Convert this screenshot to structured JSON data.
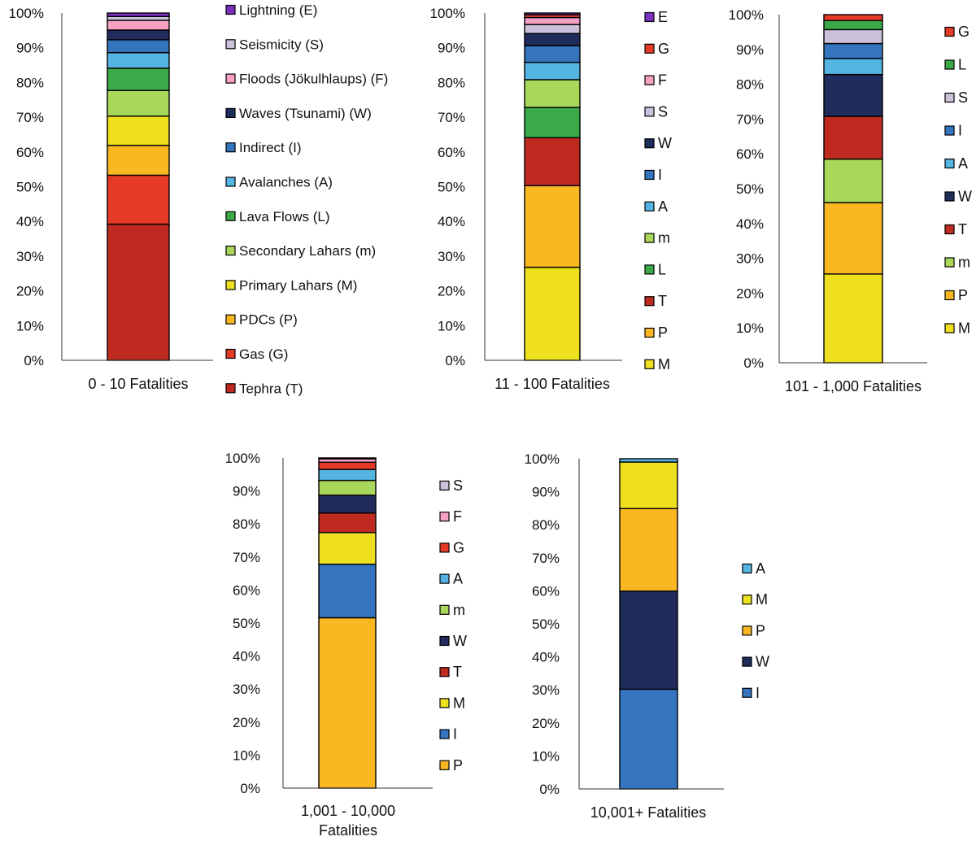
{
  "categories": {
    "E": {
      "name": "Lightning (E)",
      "color": "#7b2fbe"
    },
    "S": {
      "name": "Seismicity (S)",
      "color": "#ccc1da"
    },
    "F": {
      "name": "Floods (Jökulhlaups) (F)",
      "color": "#f7a1c4"
    },
    "W": {
      "name": "Waves (Tsunami) (W)",
      "color": "#1f2c5c"
    },
    "I": {
      "name": "Indirect (I)",
      "color": "#3575bf"
    },
    "A": {
      "name": "Avalanches (A)",
      "color": "#54b4e2"
    },
    "L": {
      "name": "Lava Flows (L)",
      "color": "#3aaa49"
    },
    "m": {
      "name": "Secondary Lahars (m)",
      "color": "#a8d75a"
    },
    "M": {
      "name": "Primary Lahars (M)",
      "color": "#eee01e"
    },
    "P": {
      "name": "PDCs (P)",
      "color": "#f9b822"
    },
    "G": {
      "name": "Gas (G)",
      "color": "#e43a26"
    },
    "T": {
      "name": "Tephra (T)",
      "color": "#bf2a20"
    }
  },
  "chart_data": [
    {
      "type": "bar",
      "stacked": true,
      "xlabel": [
        "0 - 10 Fatalities"
      ],
      "ylim": [
        0,
        100
      ],
      "yticks": [
        "0%",
        "10%",
        "20%",
        "30%",
        "40%",
        "50%",
        "60%",
        "70%",
        "80%",
        "90%",
        "100%"
      ],
      "legend_keys": [
        "E",
        "S",
        "F",
        "W",
        "I",
        "A",
        "L",
        "m",
        "M",
        "P",
        "G",
        "T"
      ],
      "legend_labels": [
        "Lightning (E)",
        "Seismicity (S)",
        "Floods (Jökulhlaups) (F)",
        "Waves (Tsunami) (W)",
        "Indirect (I)",
        "Avalanches (A)",
        "Lava Flows (L)",
        "Secondary Lahars (m)",
        "Primary Lahars (M)",
        "PDCs (P)",
        "Gas (G)",
        "Tephra (T)"
      ],
      "series": [
        {
          "key": "T",
          "value": 39.2
        },
        {
          "key": "G",
          "value": 14.1
        },
        {
          "key": "P",
          "value": 8.6
        },
        {
          "key": "M",
          "value": 8.4
        },
        {
          "key": "m",
          "value": 7.4
        },
        {
          "key": "L",
          "value": 6.4
        },
        {
          "key": "A",
          "value": 4.5
        },
        {
          "key": "I",
          "value": 3.7
        },
        {
          "key": "W",
          "value": 2.8
        },
        {
          "key": "F",
          "value": 2.8
        },
        {
          "key": "S",
          "value": 1.1
        },
        {
          "key": "E",
          "value": 1.0
        }
      ]
    },
    {
      "type": "bar",
      "stacked": true,
      "xlabel": [
        "11 - 100  Fatalities"
      ],
      "ylim": [
        0,
        100
      ],
      "yticks": [
        "0%",
        "10%",
        "20%",
        "30%",
        "40%",
        "50%",
        "60%",
        "70%",
        "80%",
        "90%",
        "100%"
      ],
      "legend_keys": [
        "E",
        "G",
        "F",
        "S",
        "W",
        "I",
        "A",
        "m",
        "L",
        "T",
        "P",
        "M"
      ],
      "legend_labels": [
        "E",
        "G",
        "F",
        "S",
        "W",
        "I",
        "A",
        "m",
        "L",
        "T",
        "P",
        "M"
      ],
      "series": [
        {
          "key": "M",
          "value": 26.8
        },
        {
          "key": "P",
          "value": 23.5
        },
        {
          "key": "T",
          "value": 13.8
        },
        {
          "key": "L",
          "value": 8.7
        },
        {
          "key": "m",
          "value": 8.0
        },
        {
          "key": "A",
          "value": 5.0
        },
        {
          "key": "I",
          "value": 4.8
        },
        {
          "key": "W",
          "value": 3.5
        },
        {
          "key": "S",
          "value": 2.6
        },
        {
          "key": "F",
          "value": 2.0
        },
        {
          "key": "G",
          "value": 0.8
        },
        {
          "key": "E",
          "value": 0.5
        }
      ]
    },
    {
      "type": "bar",
      "stacked": true,
      "xlabel": [
        "101 - 1,000  Fatalities"
      ],
      "ylim": [
        0,
        100
      ],
      "yticks": [
        "0%",
        "10%",
        "20%",
        "30%",
        "40%",
        "50%",
        "60%",
        "70%",
        "80%",
        "90%",
        "100%"
      ],
      "legend_keys": [
        "G",
        "L",
        "S",
        "I",
        "A",
        "W",
        "T",
        "m",
        "P",
        "M"
      ],
      "legend_labels": [
        "G",
        "L",
        "S",
        "I",
        "A",
        "W",
        "T",
        "m",
        "P",
        "M"
      ],
      "series": [
        {
          "key": "M",
          "value": 25.5
        },
        {
          "key": "P",
          "value": 20.5
        },
        {
          "key": "m",
          "value": 12.5
        },
        {
          "key": "T",
          "value": 12.3
        },
        {
          "key": "W",
          "value": 12.0
        },
        {
          "key": "A",
          "value": 4.6
        },
        {
          "key": "I",
          "value": 4.3
        },
        {
          "key": "S",
          "value": 4.0
        },
        {
          "key": "L",
          "value": 2.6
        },
        {
          "key": "G",
          "value": 1.7
        }
      ]
    },
    {
      "type": "bar",
      "stacked": true,
      "xlabel": [
        "1,001 - 10,000",
        "Fatalities"
      ],
      "ylim": [
        0,
        100
      ],
      "yticks": [
        "0%",
        "10%",
        "20%",
        "30%",
        "40%",
        "50%",
        "60%",
        "70%",
        "80%",
        "90%",
        "100%"
      ],
      "legend_keys": [
        "S",
        "F",
        "G",
        "A",
        "m",
        "W",
        "T",
        "M",
        "I",
        "P"
      ],
      "legend_labels": [
        "S",
        "F",
        "G",
        "A",
        "m",
        "W",
        "T",
        "M",
        "I",
        "P"
      ],
      "series": [
        {
          "key": "P",
          "value": 51.6
        },
        {
          "key": "I",
          "value": 16.2
        },
        {
          "key": "M",
          "value": 9.6
        },
        {
          "key": "T",
          "value": 5.9
        },
        {
          "key": "W",
          "value": 5.4
        },
        {
          "key": "m",
          "value": 4.5
        },
        {
          "key": "A",
          "value": 3.3
        },
        {
          "key": "G",
          "value": 2.2
        },
        {
          "key": "F",
          "value": 1.0
        },
        {
          "key": "S",
          "value": 0.3
        }
      ]
    },
    {
      "type": "bar",
      "stacked": true,
      "xlabel": [
        "10,001+ Fatalities"
      ],
      "ylim": [
        0,
        100
      ],
      "yticks": [
        "0%",
        "10%",
        "20%",
        "30%",
        "40%",
        "50%",
        "60%",
        "70%",
        "80%",
        "90%",
        "100%"
      ],
      "legend_keys": [
        "A",
        "M",
        "P",
        "W",
        "I"
      ],
      "legend_labels": [
        "A",
        "M",
        "P",
        "W",
        "I"
      ],
      "series": [
        {
          "key": "I",
          "value": 30.2
        },
        {
          "key": "W",
          "value": 29.7
        },
        {
          "key": "P",
          "value": 25.0
        },
        {
          "key": "M",
          "value": 14.1
        },
        {
          "key": "A",
          "value": 1.0
        }
      ]
    }
  ]
}
